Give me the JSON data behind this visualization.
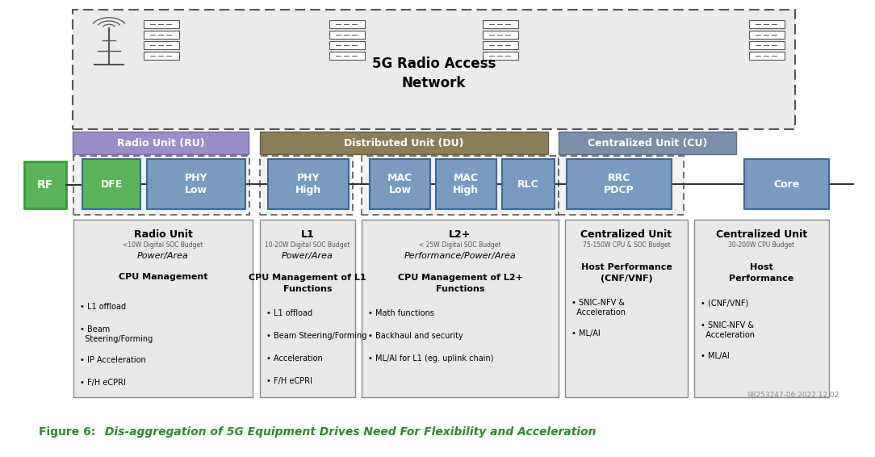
{
  "title": "5G Radio Access\nNetwork",
  "figure_label": "Figure 6:",
  "figure_caption": " Dis-aggregation of 5G Equipment Drives Need For Flexibility and Acceleration",
  "watermark": "98253247-06.2022.12.02",
  "bg_color": "#ffffff",
  "info_boxes": [
    {
      "title": "Radio Unit",
      "budget": "<10W Digital SOC Budget",
      "focus": "Power/Area",
      "mgmt": "CPU Management",
      "bullets": [
        "• L1 offload",
        "• Beam\n  Steering/Forming",
        "• IP Acceleration",
        "• F/H eCPRI"
      ]
    },
    {
      "title": "L1",
      "budget": "10-20W Digital SOC Budget",
      "focus": "Power/Area",
      "mgmt": "CPU Management of L1\nFunctions",
      "bullets": [
        "• L1 offload",
        "• Beam Steering/Forming",
        "• Acceleration",
        "• F/H eCPRI"
      ]
    },
    {
      "title": "L2+",
      "budget": "< 25W Digital SOC Budget",
      "focus": "Performance/Power/Area",
      "mgmt": "CPU Management of L2+\nFunctions",
      "bullets": [
        "• Math functions",
        "• Backhaul and security",
        "• ML/AI for L1 (eg. uplink chain)"
      ]
    },
    {
      "title": "Centralized Unit",
      "budget": "75-150W CPU & SOC Budget",
      "focus": null,
      "mgmt": "Host Performance\n(CNF/VNF)",
      "bullets": [
        "• SNIC-NFV &\n  Acceleration",
        "• ML/AI"
      ]
    },
    {
      "title": "Centralized Unit",
      "budget": "30-200W CPU Budget",
      "focus": null,
      "mgmt": "Host\nPerformance",
      "bullets": [
        "• (CNF/VNF)",
        "• SNIC-NFV &\n  Acceleration",
        "• ML/AI"
      ]
    }
  ]
}
